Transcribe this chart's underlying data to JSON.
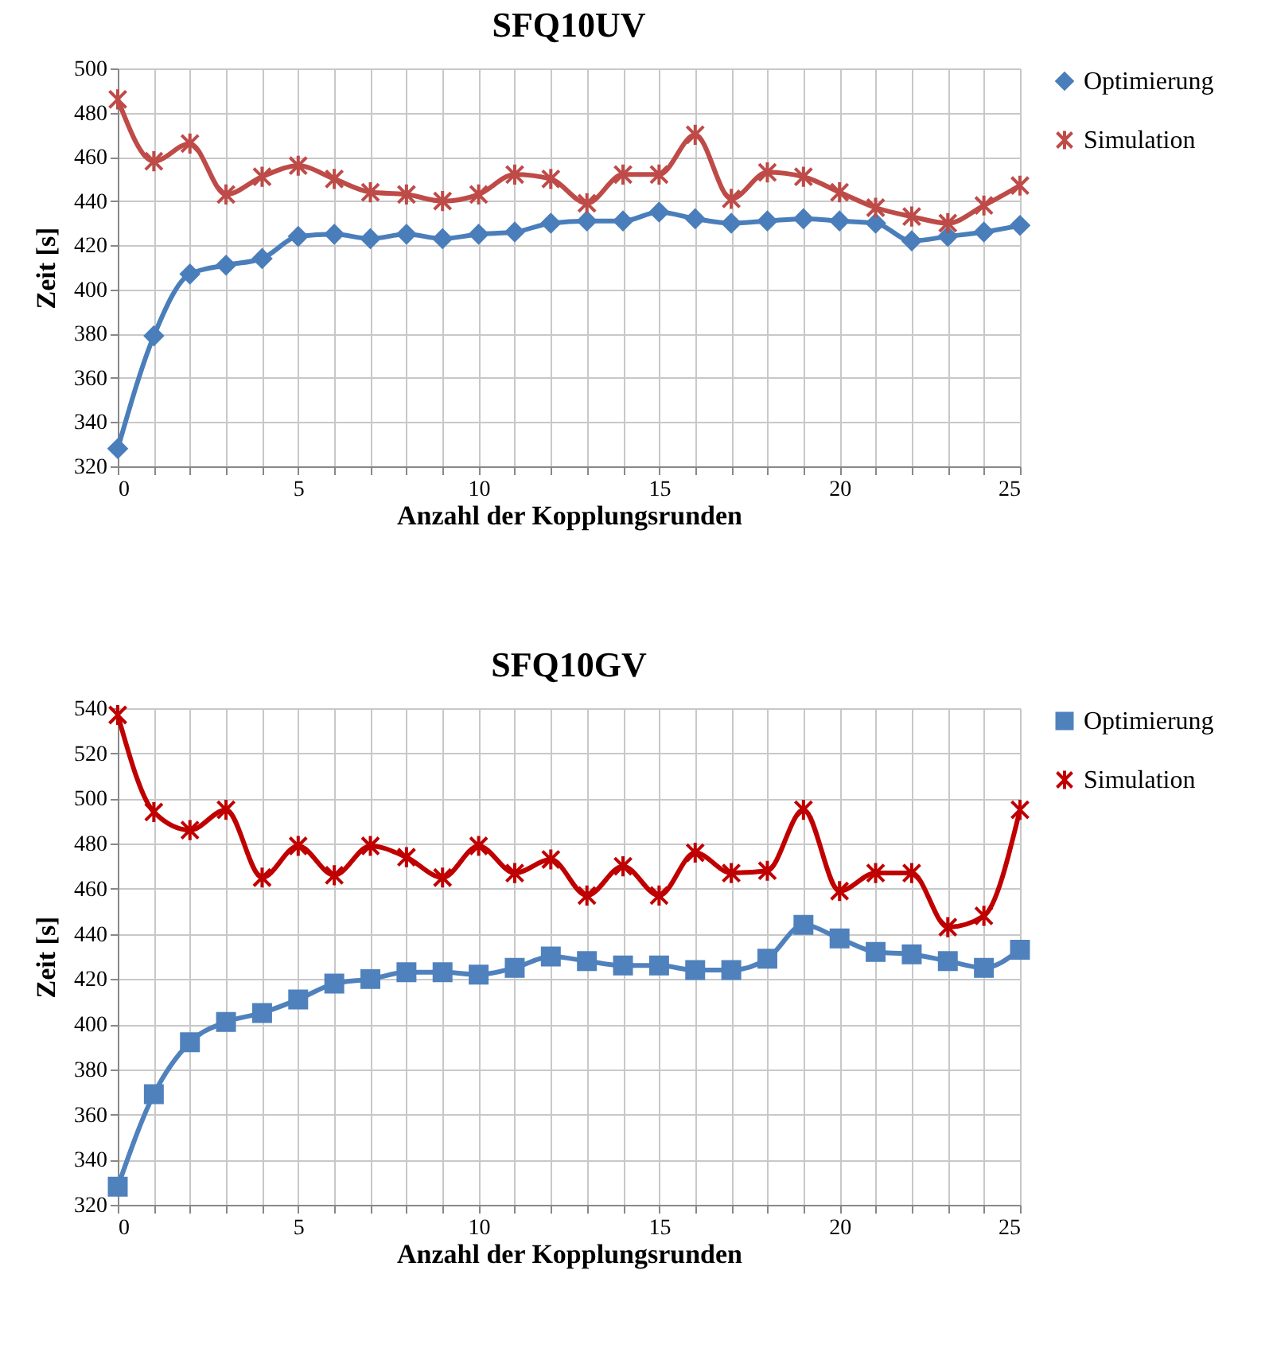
{
  "chart_data": [
    {
      "type": "line",
      "title": "SFQ10UV",
      "xlabel": "Anzahl der Kopplungsrunden",
      "ylabel": "Zeit [s]",
      "x": [
        0,
        1,
        2,
        3,
        4,
        5,
        6,
        7,
        8,
        9,
        10,
        11,
        12,
        13,
        14,
        15,
        16,
        17,
        18,
        19,
        20,
        21,
        22,
        23,
        24,
        25
      ],
      "xlim": [
        0,
        25
      ],
      "xticks": [
        0,
        {
          "value": 1,
          "label": null
        },
        {
          "value": 2,
          "label": null
        },
        {
          "value": 3,
          "label": null
        },
        {
          "value": 4,
          "label": null
        },
        5,
        {
          "value": 6,
          "label": null
        },
        {
          "value": 7,
          "label": null
        },
        {
          "value": 8,
          "label": null
        },
        {
          "value": 9,
          "label": null
        },
        10,
        {
          "value": 11,
          "label": null
        },
        {
          "value": 12,
          "label": null
        },
        {
          "value": 13,
          "label": null
        },
        {
          "value": 14,
          "label": null
        },
        15,
        {
          "value": 16,
          "label": null
        },
        {
          "value": 17,
          "label": null
        },
        {
          "value": 18,
          "label": null
        },
        {
          "value": 19,
          "label": null
        },
        20,
        {
          "value": 21,
          "label": null
        },
        {
          "value": 22,
          "label": null
        },
        {
          "value": 23,
          "label": null
        },
        {
          "value": 24,
          "label": null
        },
        25
      ],
      "ylim": [
        320,
        500
      ],
      "yticks": [
        320,
        340,
        360,
        380,
        400,
        420,
        440,
        460,
        480,
        500
      ],
      "grid": true,
      "legend": "top right",
      "series": [
        {
          "name": "Optimierung",
          "color": "#4a7ebb",
          "marker": "diamond",
          "values": [
            328,
            379,
            407,
            411,
            414,
            424,
            425,
            423,
            425,
            423,
            425,
            426,
            430,
            431,
            431,
            435,
            432,
            430,
            431,
            432,
            431,
            430,
            422,
            424,
            426,
            429
          ]
        },
        {
          "name": "Simulation",
          "color": "#be4b48",
          "marker": "cross",
          "values": [
            486,
            458,
            466,
            443,
            451,
            456,
            450,
            444,
            443,
            440,
            443,
            452,
            450,
            439,
            452,
            452,
            470,
            441,
            453,
            451,
            444,
            437,
            433,
            430,
            438,
            447
          ]
        }
      ]
    },
    {
      "type": "line",
      "title": "SFQ10GV",
      "xlabel": "Anzahl der Kopplungsrunden",
      "ylabel": "Zeit [s]",
      "x": [
        0,
        1,
        2,
        3,
        4,
        5,
        6,
        7,
        8,
        9,
        10,
        11,
        12,
        13,
        14,
        15,
        16,
        17,
        18,
        19,
        20,
        21,
        22,
        23,
        24,
        25
      ],
      "xlim": [
        0,
        25
      ],
      "xticks": [
        0,
        {
          "value": 1,
          "label": null
        },
        {
          "value": 2,
          "label": null
        },
        {
          "value": 3,
          "label": null
        },
        {
          "value": 4,
          "label": null
        },
        5,
        {
          "value": 6,
          "label": null
        },
        {
          "value": 7,
          "label": null
        },
        {
          "value": 8,
          "label": null
        },
        {
          "value": 9,
          "label": null
        },
        10,
        {
          "value": 11,
          "label": null
        },
        {
          "value": 12,
          "label": null
        },
        {
          "value": 13,
          "label": null
        },
        {
          "value": 14,
          "label": null
        },
        15,
        {
          "value": 16,
          "label": null
        },
        {
          "value": 17,
          "label": null
        },
        {
          "value": 18,
          "label": null
        },
        {
          "value": 19,
          "label": null
        },
        20,
        {
          "value": 21,
          "label": null
        },
        {
          "value": 22,
          "label": null
        },
        {
          "value": 23,
          "label": null
        },
        {
          "value": 24,
          "label": null
        },
        25
      ],
      "ylim": [
        320,
        540
      ],
      "yticks": [
        320,
        340,
        360,
        380,
        400,
        420,
        440,
        460,
        480,
        500,
        520,
        540
      ],
      "grid": true,
      "legend": "top right",
      "series": [
        {
          "name": "Optimierung",
          "color": "#4f81bd",
          "marker": "square",
          "values": [
            328,
            369,
            392,
            401,
            405,
            411,
            418,
            420,
            423,
            423,
            422,
            425,
            430,
            428,
            426,
            426,
            424,
            424,
            429,
            444,
            438,
            432,
            431,
            428,
            425,
            433
          ]
        },
        {
          "name": "Simulation",
          "color": "#c00000",
          "marker": "cross",
          "values": [
            537,
            494,
            486,
            495,
            465,
            479,
            466,
            479,
            474,
            465,
            479,
            467,
            473,
            457,
            470,
            457,
            476,
            467,
            468,
            495,
            459,
            467,
            467,
            443,
            448,
            495
          ]
        }
      ]
    }
  ]
}
